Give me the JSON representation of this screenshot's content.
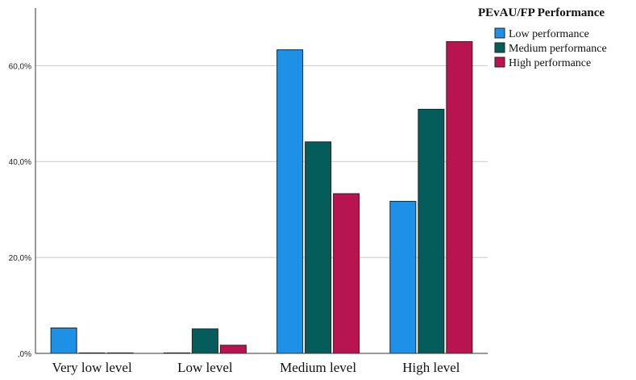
{
  "chart_data": {
    "type": "bar",
    "legend_title": "PEvAU/FP Performance",
    "legend_position": "top-right",
    "categories": [
      "Very low level",
      "Low level",
      "Medium level",
      "High level"
    ],
    "series": [
      {
        "name": "Low performance",
        "color": "#1E90E6",
        "values": [
          5.3,
          0.0,
          63.3,
          31.7
        ]
      },
      {
        "name": "Medium performance",
        "color": "#045D5A",
        "values": [
          0.0,
          5.1,
          44.1,
          50.9
        ]
      },
      {
        "name": "High performance",
        "color": "#B8144F",
        "values": [
          0.0,
          1.7,
          33.3,
          65.0
        ]
      }
    ],
    "ylim": [
      0,
      72
    ],
    "yticks": [
      0,
      20,
      40,
      60
    ],
    "ytick_labels": [
      ",0%",
      "20,0%",
      "40,0%",
      "60,0%"
    ],
    "grid": true
  }
}
